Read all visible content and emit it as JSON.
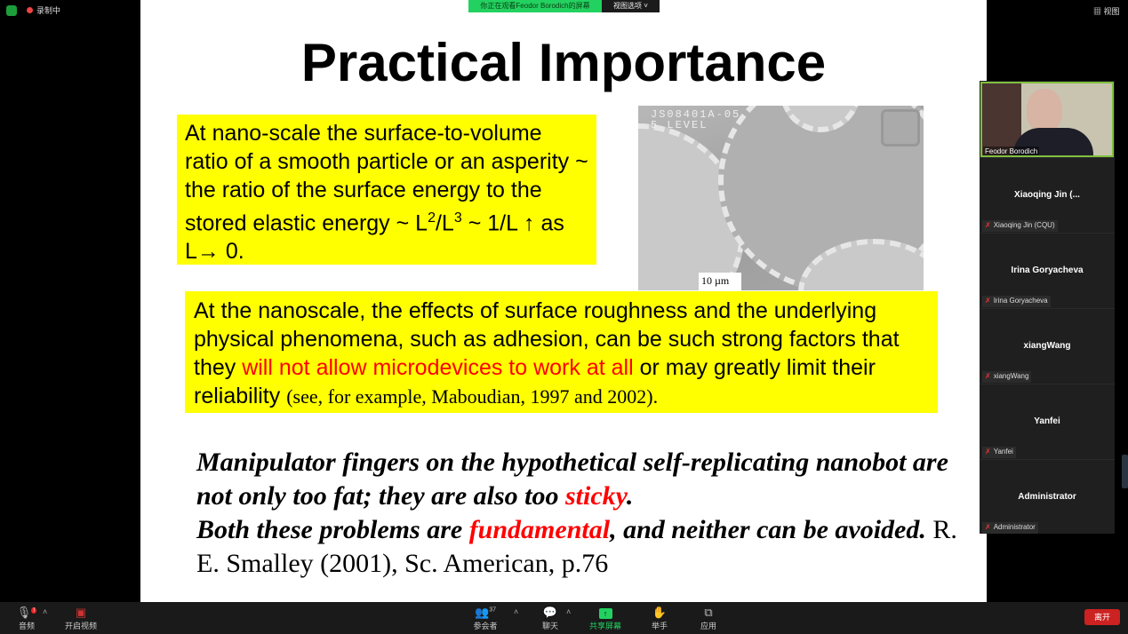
{
  "topbar": {
    "recording_label": "录制中",
    "banner": "你正在观看Feodor  Borodich的屏幕",
    "view_options": "视图选项",
    "view_label": "视图",
    "view_options_chevron": "chevron-down-icon"
  },
  "slide": {
    "title": "Practical Importance",
    "box1": {
      "t1": "At nano-scale the surface-to-volume ratio of a smooth particle or an asperity ~ the ratio of the surface energy to the stored elastic energy  ~ L",
      "s1": "2",
      "t2": "/L",
      "s2": "3",
      "t3": " ~ 1/L ↑ as L→ 0."
    },
    "box2": {
      "t1": "At the nanoscale, the effects of surface roughness and the underlying physical phenomena, such as adhesion, can be such strong factors that they ",
      "red": "will not allow microdevices to work at all",
      "t2": " or may greatly limit their reliability ",
      "cite": "(see, for example, Maboudian, 1997 and 2002)."
    },
    "quote": {
      "t1": "Manipulator fingers on the hypothetical self-replicating nanobot are not only too fat; they are also too ",
      "red1": "sticky",
      "t2": ".",
      "t3": "Both these problems are ",
      "red2": "fundamental",
      "t4": ", and neither can be avoided.",
      "cite": "  R. E. Smalley (2001), Sc. American, p.76"
    },
    "image": {
      "label1": "JS08401A-05",
      "label2": "5 LEVEL",
      "scale": "10 µm"
    },
    "colors": {
      "highlight": "#ffff00",
      "emphasis": "#ff0000"
    }
  },
  "participants": {
    "speaker": "Feodor Borodich",
    "tiles": [
      {
        "display": "Xiaoqing  Jin  (...",
        "tag": "Xiaoqing Jin  (CQU)"
      },
      {
        "display": "Irina Goryacheva",
        "tag": "Irina Goryacheva"
      },
      {
        "display": "xiangWang",
        "tag": "xiangWang"
      },
      {
        "display": "Yanfei",
        "tag": "Yanfei"
      },
      {
        "display": "Administrator",
        "tag": "Administrator"
      }
    ]
  },
  "toolbar": {
    "audio": "音频",
    "audio_badge": "!",
    "video": "开启视频",
    "participants": "参会者",
    "participant_count": "37",
    "chat": "聊天",
    "share": "共享屏幕",
    "raise_hand": "举手",
    "apps": "应用",
    "leave": "离开",
    "share_color": "#23d160",
    "leave_color": "#cc2222"
  }
}
